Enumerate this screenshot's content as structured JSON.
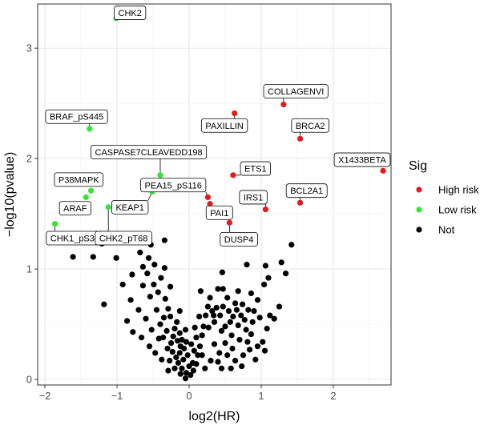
{
  "chart_data": {
    "type": "scatter",
    "title": "",
    "xlabel": "log2(HR)",
    "ylabel": "−log10(pvalue)",
    "xlim": [
      -2.1,
      2.8
    ],
    "ylim": [
      -0.05,
      3.4
    ],
    "x_ticks": [
      -2,
      -1,
      0,
      1,
      2
    ],
    "y_ticks": [
      0,
      1,
      2,
      3
    ],
    "x_tick_labels": [
      "−2",
      "−1",
      "0",
      "1",
      "2"
    ],
    "y_tick_labels": [
      "0",
      "1",
      "2",
      "3"
    ],
    "grid": true,
    "legend": {
      "title": "Sig",
      "position": "right",
      "entries": [
        {
          "label": "High risk",
          "color": "#e41a1c"
        },
        {
          "label": "Low risk",
          "color": "#33e633"
        },
        {
          "label": "Not",
          "color": "#000000"
        }
      ]
    },
    "series": [
      {
        "name": "High risk",
        "color": "#e41a1c",
        "points": [
          {
            "x": 0.63,
            "y": 2.41,
            "label": "PAXILLIN"
          },
          {
            "x": 1.31,
            "y": 2.49,
            "label": "COLLAGENVI"
          },
          {
            "x": 1.54,
            "y": 2.18,
            "label": "BRCA2"
          },
          {
            "x": 2.69,
            "y": 1.89,
            "label": "X1433BETA"
          },
          {
            "x": 0.61,
            "y": 1.85,
            "label": "ETS1"
          },
          {
            "x": 1.54,
            "y": 1.6,
            "label": "BCL2A1"
          },
          {
            "x": 1.06,
            "y": 1.54,
            "label": "IRS1"
          },
          {
            "x": 0.26,
            "y": 1.65,
            "label": "PEA15_pS116"
          },
          {
            "x": 0.29,
            "y": 1.59,
            "label": "PAI1"
          },
          {
            "x": 0.56,
            "y": 1.42,
            "label": "DUSP4"
          }
        ]
      },
      {
        "name": "Low risk",
        "color": "#33e633",
        "points": [
          {
            "x": -1.01,
            "y": 3.27,
            "label": "CHK2"
          },
          {
            "x": -1.38,
            "y": 2.27,
            "label": "BRAF_pS445"
          },
          {
            "x": -0.4,
            "y": 1.85,
            "label": "CASPASE7CLEAVEDD198"
          },
          {
            "x": -1.36,
            "y": 1.71,
            "label": "P38MAPK"
          },
          {
            "x": -0.51,
            "y": 1.7,
            "label": "KEAP1"
          },
          {
            "x": -1.43,
            "y": 1.65,
            "label": "ARAF"
          },
          {
            "x": -1.12,
            "y": 1.56,
            "label": "CHK2_pT68"
          },
          {
            "x": -1.86,
            "y": 1.41,
            "label": "CHK1_pS345"
          }
        ]
      },
      {
        "name": "Not",
        "color": "#000000",
        "points": [
          {
            "x": -1.61,
            "y": 1.11
          },
          {
            "x": -1.33,
            "y": 1.11
          },
          {
            "x": -1.21,
            "y": 1.23
          },
          {
            "x": -1.01,
            "y": 1.1
          },
          {
            "x": -0.73,
            "y": 1.25
          },
          {
            "x": -0.53,
            "y": 1.22
          },
          {
            "x": -0.34,
            "y": 1.26
          },
          {
            "x": -0.68,
            "y": 1.15
          },
          {
            "x": -0.64,
            "y": 1.02
          },
          {
            "x": -0.56,
            "y": 1.1
          },
          {
            "x": -0.48,
            "y": 1.04
          },
          {
            "x": -0.58,
            "y": 0.96
          },
          {
            "x": -0.79,
            "y": 0.95
          },
          {
            "x": -0.34,
            "y": 1.01
          },
          {
            "x": -0.39,
            "y": 0.92
          },
          {
            "x": -0.49,
            "y": 0.86
          },
          {
            "x": -0.64,
            "y": 0.85
          },
          {
            "x": -0.92,
            "y": 0.86
          },
          {
            "x": -0.81,
            "y": 0.72
          },
          {
            "x": -0.54,
            "y": 0.75
          },
          {
            "x": -0.43,
            "y": 0.79
          },
          {
            "x": -0.26,
            "y": 0.84
          },
          {
            "x": -0.33,
            "y": 0.73
          },
          {
            "x": -0.29,
            "y": 0.64
          },
          {
            "x": -0.26,
            "y": 0.57
          },
          {
            "x": -0.45,
            "y": 0.63
          },
          {
            "x": -0.6,
            "y": 0.55
          },
          {
            "x": -0.7,
            "y": 0.63
          },
          {
            "x": -0.86,
            "y": 0.53
          },
          {
            "x": -1.18,
            "y": 0.68
          },
          {
            "x": -0.52,
            "y": 0.45
          },
          {
            "x": -0.4,
            "y": 0.5
          },
          {
            "x": -0.31,
            "y": 0.44
          },
          {
            "x": -0.2,
            "y": 0.46
          },
          {
            "x": -0.36,
            "y": 0.38
          },
          {
            "x": -0.25,
            "y": 0.33
          },
          {
            "x": -0.16,
            "y": 0.35
          },
          {
            "x": -0.23,
            "y": 0.25
          },
          {
            "x": -0.13,
            "y": 0.24
          },
          {
            "x": -0.27,
            "y": 0.17
          },
          {
            "x": -0.15,
            "y": 0.15
          },
          {
            "x": -0.08,
            "y": 0.18
          },
          {
            "x": -0.1,
            "y": 0.1
          },
          {
            "x": -0.04,
            "y": 0.06
          },
          {
            "x": -0.07,
            "y": 0.28
          },
          {
            "x": -0.13,
            "y": 0.42
          },
          {
            "x": -0.17,
            "y": 0.52
          },
          {
            "x": -0.13,
            "y": 0.62
          },
          {
            "x": -0.04,
            "y": 0.34
          },
          {
            "x": -0.02,
            "y": 0.22
          },
          {
            "x": 0.0,
            "y": 0.12
          },
          {
            "x": 0.02,
            "y": 0.04
          },
          {
            "x": 0.05,
            "y": 0.15
          },
          {
            "x": 0.07,
            "y": 0.26
          },
          {
            "x": 0.03,
            "y": 0.32
          },
          {
            "x": 0.1,
            "y": 0.38
          },
          {
            "x": 0.12,
            "y": 0.22
          },
          {
            "x": 0.15,
            "y": 0.3
          },
          {
            "x": 0.18,
            "y": 0.4
          },
          {
            "x": 0.2,
            "y": 0.48
          },
          {
            "x": 0.23,
            "y": 0.58
          },
          {
            "x": 0.26,
            "y": 0.66
          },
          {
            "x": 0.29,
            "y": 0.74
          },
          {
            "x": 0.32,
            "y": 0.62
          },
          {
            "x": 0.35,
            "y": 0.52
          },
          {
            "x": 0.38,
            "y": 0.65
          },
          {
            "x": 0.4,
            "y": 0.82
          },
          {
            "x": 0.43,
            "y": 0.58
          },
          {
            "x": 0.47,
            "y": 0.66
          },
          {
            "x": 0.5,
            "y": 0.48
          },
          {
            "x": 0.53,
            "y": 0.74
          },
          {
            "x": 0.55,
            "y": 0.62
          },
          {
            "x": 0.57,
            "y": 0.52
          },
          {
            "x": 0.59,
            "y": 0.4
          },
          {
            "x": 0.61,
            "y": 0.57
          },
          {
            "x": 0.64,
            "y": 0.69
          },
          {
            "x": 0.66,
            "y": 0.63
          },
          {
            "x": 0.68,
            "y": 0.49
          },
          {
            "x": 0.7,
            "y": 0.36
          },
          {
            "x": 0.72,
            "y": 0.58
          },
          {
            "x": 0.74,
            "y": 0.68
          },
          {
            "x": 0.77,
            "y": 0.54
          },
          {
            "x": 0.79,
            "y": 0.45
          },
          {
            "x": 0.81,
            "y": 0.34
          },
          {
            "x": 0.84,
            "y": 0.27
          },
          {
            "x": 0.86,
            "y": 0.41
          },
          {
            "x": 0.88,
            "y": 0.52
          },
          {
            "x": 0.9,
            "y": 0.62
          },
          {
            "x": 0.95,
            "y": 0.72
          },
          {
            "x": 0.98,
            "y": 0.56
          },
          {
            "x": 1.02,
            "y": 0.34
          },
          {
            "x": 1.05,
            "y": 0.26
          },
          {
            "x": 1.08,
            "y": 0.46
          },
          {
            "x": 1.12,
            "y": 0.58
          },
          {
            "x": 1.18,
            "y": 0.55
          },
          {
            "x": 1.25,
            "y": 0.66
          },
          {
            "x": 1.04,
            "y": 0.86
          },
          {
            "x": 1.1,
            "y": 0.92
          },
          {
            "x": 1.28,
            "y": 1.06
          },
          {
            "x": 1.34,
            "y": 0.96
          },
          {
            "x": 1.42,
            "y": 1.22
          },
          {
            "x": 1.06,
            "y": 1.03
          },
          {
            "x": 0.8,
            "y": 1.04
          },
          {
            "x": 0.86,
            "y": 0.78
          },
          {
            "x": 0.56,
            "y": 1.24
          },
          {
            "x": 0.46,
            "y": 0.97
          },
          {
            "x": 0.16,
            "y": 0.8
          },
          {
            "x": 0.3,
            "y": 0.17
          },
          {
            "x": 0.22,
            "y": 0.1
          },
          {
            "x": 0.45,
            "y": 0.1
          },
          {
            "x": 0.35,
            "y": 0.32
          },
          {
            "x": 0.42,
            "y": 0.24
          },
          {
            "x": 0.5,
            "y": 0.33
          },
          {
            "x": 0.6,
            "y": 0.28
          },
          {
            "x": 0.64,
            "y": 0.17
          },
          {
            "x": 0.58,
            "y": 0.1
          },
          {
            "x": 0.75,
            "y": 0.22
          },
          {
            "x": 0.92,
            "y": 0.18
          },
          {
            "x": 0.95,
            "y": 0.3
          },
          {
            "x": 0.27,
            "y": 0.47
          },
          {
            "x": 0.34,
            "y": 0.58
          },
          {
            "x": 0.14,
            "y": 0.57
          },
          {
            "x": 0.08,
            "y": 0.47
          },
          {
            "x": -0.05,
            "y": 0.45
          },
          {
            "x": -0.1,
            "y": 0.36
          },
          {
            "x": -0.2,
            "y": 0.1
          },
          {
            "x": -0.12,
            "y": 0.05
          },
          {
            "x": 0.06,
            "y": 0.08
          },
          {
            "x": 0.1,
            "y": 0.14
          },
          {
            "x": -0.05,
            "y": 0.01
          },
          {
            "x": -0.3,
            "y": 0.28
          },
          {
            "x": -0.42,
            "y": 0.37
          },
          {
            "x": -0.47,
            "y": 0.24
          },
          {
            "x": -0.55,
            "y": 0.3
          },
          {
            "x": -0.66,
            "y": 0.38
          },
          {
            "x": -0.78,
            "y": 0.43
          },
          {
            "x": -0.38,
            "y": 0.18
          },
          {
            "x": -0.29,
            "y": 0.08
          },
          {
            "x": -0.18,
            "y": 0.2
          },
          {
            "x": -0.12,
            "y": 0.3
          },
          {
            "x": -0.22,
            "y": 0.39
          },
          {
            "x": -0.35,
            "y": 0.56
          },
          {
            "x": 0.45,
            "y": 0.44
          },
          {
            "x": 0.53,
            "y": 0.22
          },
          {
            "x": 0.73,
            "y": 0.12
          },
          {
            "x": 0.4,
            "y": 0.16
          },
          {
            "x": 0.18,
            "y": 0.22
          },
          {
            "x": 0.68,
            "y": 0.8
          },
          {
            "x": 0.82,
            "y": 0.63
          },
          {
            "x": 0.47,
            "y": 0.82
          }
        ]
      }
    ],
    "labels": [
      {
        "text": "CHK2",
        "tx": -0.82,
        "ty": 3.32,
        "px": -1.01,
        "py": 3.27
      },
      {
        "text": "BRAF_pS445",
        "tx": -1.56,
        "ty": 2.38,
        "px": -1.38,
        "py": 2.27
      },
      {
        "text": "CASPASE7CLEAVEDD198",
        "tx": -0.56,
        "ty": 2.06,
        "px": -0.4,
        "py": 1.85
      },
      {
        "text": "P38MAPK",
        "tx": -1.53,
        "ty": 1.81,
        "px": -1.36,
        "py": 1.71
      },
      {
        "text": "PEA15_pS116",
        "tx": -0.22,
        "ty": 1.76,
        "px": 0.26,
        "py": 1.65
      },
      {
        "text": "KEAP1",
        "tx": -0.82,
        "ty": 1.56,
        "px": -0.51,
        "py": 1.7
      },
      {
        "text": "ARAF",
        "tx": -1.58,
        "ty": 1.55,
        "px": -1.43,
        "py": 1.65
      },
      {
        "text": "CHK1_pS345",
        "tx": -1.55,
        "ty": 1.28,
        "px": -1.86,
        "py": 1.41
      },
      {
        "text": "CHK2_pT68",
        "tx": -0.91,
        "ty": 1.28,
        "px": -1.12,
        "py": 1.56
      },
      {
        "text": "COLLAGENVI",
        "tx": 1.48,
        "ty": 2.61,
        "px": 1.31,
        "py": 2.49
      },
      {
        "text": "PAXILLIN",
        "tx": 0.49,
        "ty": 2.3,
        "px": 0.63,
        "py": 2.41
      },
      {
        "text": "BRCA2",
        "tx": 1.68,
        "ty": 2.3,
        "px": 1.54,
        "py": 2.18
      },
      {
        "text": "X1433BETA",
        "tx": 2.4,
        "ty": 1.99,
        "px": 2.69,
        "py": 1.89
      },
      {
        "text": "ETS1",
        "tx": 0.92,
        "ty": 1.91,
        "px": 0.61,
        "py": 1.85
      },
      {
        "text": "BCL2A1",
        "tx": 1.63,
        "ty": 1.71,
        "px": 1.54,
        "py": 1.6
      },
      {
        "text": "IRS1",
        "tx": 0.89,
        "ty": 1.65,
        "px": 1.06,
        "py": 1.54
      },
      {
        "text": "PAI1",
        "tx": 0.42,
        "ty": 1.51,
        "px": 0.29,
        "py": 1.59
      },
      {
        "text": "DUSP4",
        "tx": 0.69,
        "ty": 1.27,
        "px": 0.56,
        "py": 1.42
      }
    ]
  }
}
